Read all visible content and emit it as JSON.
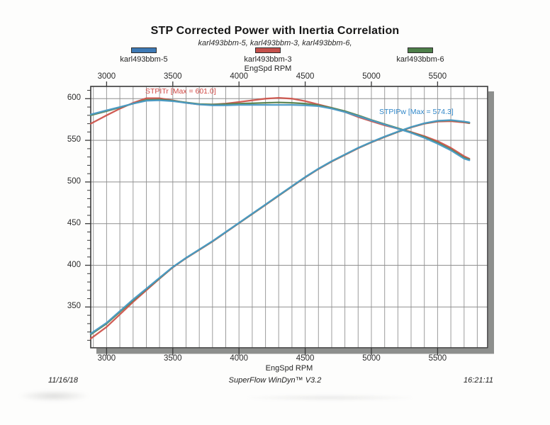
{
  "page": {
    "title": "STP Corrected Power with Inertia Correlation",
    "subtitle": "karl493bbm-5, karl493bbm-3, karl493bbm-6,",
    "footer": {
      "date": "11/16/18",
      "app": "SuperFlow WinDyn™ V3.2",
      "time": "16:21:11"
    }
  },
  "legend": {
    "position": "top",
    "items": [
      {
        "label": "karl493bbm-5",
        "color": "#3d79b5"
      },
      {
        "label": "karl493bbm-3",
        "color": "#c4504b"
      },
      {
        "label": "karl493bbm-6",
        "color": "#4d7f49"
      }
    ]
  },
  "chart_data": {
    "type": "line",
    "title": "STP Corrected Power with Inertia Correlation",
    "xlabel": "EngSpd RPM",
    "xlabel_top": "EngSpd RPM",
    "ylabel": "",
    "grid": true,
    "xlim": [
      2880,
      5878
    ],
    "ylim": [
      301,
      614.7
    ],
    "x_ticks": [
      3000,
      3500,
      4000,
      4500,
      5000,
      5500
    ],
    "x_minor_step": 100,
    "y_ticks": [
      350,
      400,
      450,
      500,
      550,
      600
    ],
    "y_minor_step": 10,
    "maxima": {
      "STPITr": 601.0,
      "STPIPw": 574.3
    },
    "annotations": [
      {
        "text": "STPITr [Max = 601.0]",
        "color": "#d04844",
        "rpm": 3292,
        "value": 608
      },
      {
        "text": "STPIPw [Max = 574.3]",
        "color": "#2f86c8",
        "rpm": 5058,
        "value": 583
      }
    ],
    "rpm": [
      2880,
      3000,
      3100,
      3200,
      3300,
      3400,
      3500,
      3600,
      3700,
      3800,
      3900,
      4000,
      4100,
      4200,
      4300,
      4400,
      4500,
      4600,
      4700,
      4800,
      4900,
      5000,
      5100,
      5200,
      5300,
      5400,
      5500,
      5600,
      5700,
      5740
    ],
    "series": [
      {
        "name": "karl493bbm-3",
        "channel": "STPITr",
        "color": "#cd544c",
        "values": [
          570,
          580,
          588,
          595,
          600.5,
          600.5,
          598,
          595,
          593,
          593,
          594,
          596,
          598,
          600,
          601,
          600,
          597,
          593,
          589,
          584,
          578,
          573,
          568,
          564,
          560,
          555,
          549,
          541,
          531,
          528
        ]
      },
      {
        "name": "karl493bbm-3",
        "channel": "STPIPw",
        "color": "#cd544c",
        "values": [
          312,
          326,
          341,
          356,
          370,
          384,
          397.5,
          408.5,
          418.5,
          428.5,
          439.5,
          450.5,
          461.5,
          472.5,
          483.5,
          494.5,
          505.5,
          515.5,
          524.5,
          532.5,
          540.5,
          547.5,
          554,
          560,
          565.5,
          570,
          572.5,
          573,
          571.5,
          570.5
        ]
      },
      {
        "name": "karl493bbm-6",
        "channel": "STPITr",
        "color": "#57824e",
        "values": [
          580,
          585,
          589.5,
          594,
          598.5,
          599,
          597.5,
          595.5,
          593.5,
          593,
          593.5,
          594,
          594.5,
          595,
          595.5,
          595,
          594,
          592,
          589,
          585,
          580,
          574.5,
          569.5,
          564.5,
          559.5,
          554,
          547,
          539,
          529,
          527
        ]
      },
      {
        "name": "karl493bbm-6",
        "channel": "STPIPw",
        "color": "#57824e",
        "values": [
          317,
          330,
          344,
          358,
          371.5,
          384.5,
          397.8,
          408.8,
          418.8,
          428.8,
          439.8,
          450.8,
          461.8,
          472.8,
          483.8,
          494.8,
          505.8,
          515.8,
          524.8,
          532.8,
          540.8,
          547.8,
          554.3,
          560.3,
          565.8,
          570.3,
          573.3,
          574,
          572.3,
          571
        ]
      },
      {
        "name": "karl493bbm-5",
        "channel": "STPITr",
        "color": "#4a9ac6",
        "values": [
          581,
          586,
          590,
          594,
          597.5,
          598,
          597,
          595,
          593,
          592,
          592,
          592.5,
          592.5,
          592.5,
          592.5,
          592.5,
          592,
          591,
          588,
          584,
          579,
          574,
          569,
          564,
          559,
          553,
          546,
          538,
          528,
          526
        ]
      },
      {
        "name": "karl493bbm-5",
        "channel": "STPIPw",
        "color": "#4a9ac6",
        "values": [
          318,
          331,
          345,
          359,
          372,
          385,
          398,
          409,
          419,
          429,
          440,
          451,
          462,
          473,
          484,
          495,
          506,
          516,
          525,
          533,
          541,
          548,
          554.5,
          560.5,
          566,
          570.5,
          573.5,
          574.3,
          572.5,
          571.5
        ]
      }
    ]
  }
}
